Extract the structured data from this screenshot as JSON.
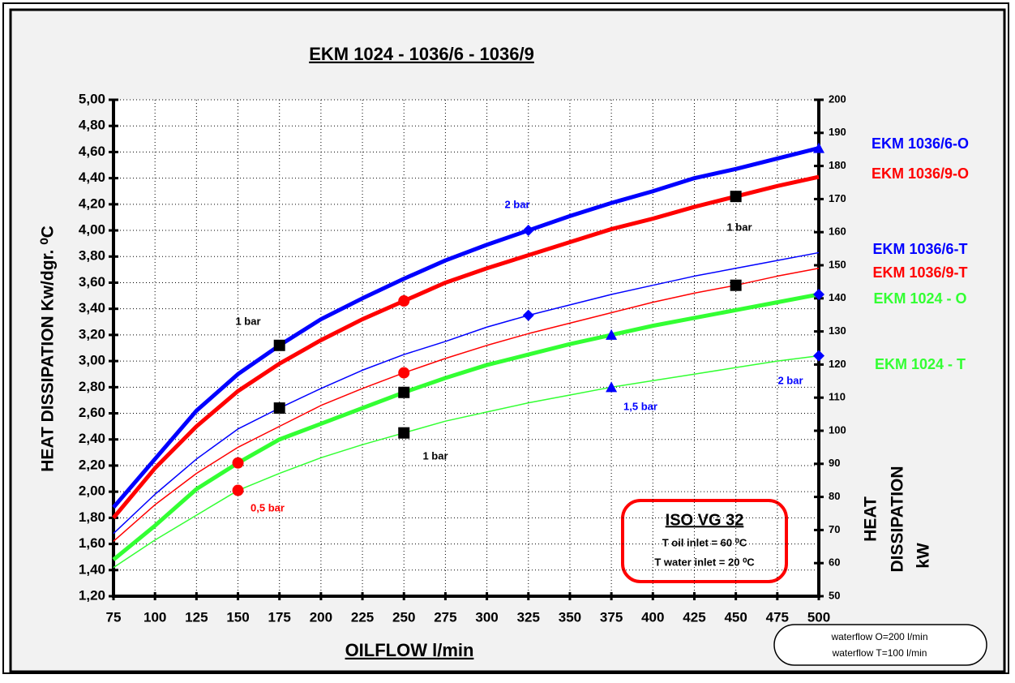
{
  "chart_data": {
    "type": "line",
    "title": "EKM 1024 - 1036/6 - 1036/9",
    "x_label": "OILFLOW l/min",
    "y_label": "HEAT DISSIPATION  Kw/dgr. ⁰C",
    "y2_label": [
      "HEAT",
      "DISSIPATION",
      "kW"
    ],
    "x": [
      75,
      100,
      125,
      150,
      175,
      200,
      225,
      250,
      275,
      300,
      325,
      350,
      375,
      400,
      425,
      450,
      475,
      500
    ],
    "xlim": [
      75,
      500
    ],
    "xticks": [
      75,
      100,
      125,
      150,
      175,
      200,
      225,
      250,
      275,
      300,
      325,
      350,
      375,
      400,
      425,
      450,
      475,
      500
    ],
    "ylim": [
      1.2,
      5.0
    ],
    "yticks": [
      {
        "value": 1.2,
        "label": "1,20"
      },
      {
        "value": 1.4,
        "label": "1,40"
      },
      {
        "value": 1.6,
        "label": "1,60"
      },
      {
        "value": 1.8,
        "label": "1,80"
      },
      {
        "value": 2.0,
        "label": "2,00"
      },
      {
        "value": 2.2,
        "label": "2,20"
      },
      {
        "value": 2.4,
        "label": "2,40"
      },
      {
        "value": 2.6,
        "label": "2,60"
      },
      {
        "value": 2.8,
        "label": "2,80"
      },
      {
        "value": 3.0,
        "label": "3,00"
      },
      {
        "value": 3.2,
        "label": "3,20"
      },
      {
        "value": 3.4,
        "label": "3,40"
      },
      {
        "value": 3.6,
        "label": "3,60"
      },
      {
        "value": 3.8,
        "label": "3,80"
      },
      {
        "value": 4.0,
        "label": "4,00"
      },
      {
        "value": 4.2,
        "label": "4,20"
      },
      {
        "value": 4.4,
        "label": "4,40"
      },
      {
        "value": 4.6,
        "label": "4,60"
      },
      {
        "value": 4.8,
        "label": "4,80"
      },
      {
        "value": 5.0,
        "label": "5,00"
      }
    ],
    "y2lim": [
      50,
      200
    ],
    "y2ticks": [
      50,
      60,
      70,
      80,
      90,
      100,
      110,
      120,
      130,
      140,
      150,
      160,
      170,
      180,
      190,
      200
    ],
    "grid": true,
    "series": [
      {
        "name": "EKM 1036/6-O",
        "color": "#0000ff",
        "width": 5,
        "values": [
          1.88,
          2.25,
          2.62,
          2.9,
          3.12,
          3.32,
          3.48,
          3.63,
          3.77,
          3.89,
          4.0,
          4.11,
          4.21,
          4.3,
          4.4,
          4.47,
          4.55,
          4.63
        ]
      },
      {
        "name": "EKM 1036/9-O",
        "color": "#ff0000",
        "width": 5,
        "values": [
          1.8,
          2.18,
          2.5,
          2.77,
          2.98,
          3.16,
          3.32,
          3.46,
          3.6,
          3.71,
          3.81,
          3.91,
          4.01,
          4.09,
          4.18,
          4.26,
          4.34,
          4.41
        ]
      },
      {
        "name": "EKM 1036/6-T",
        "color": "#0000ff",
        "width": 1.5,
        "values": [
          1.68,
          1.98,
          2.25,
          2.48,
          2.64,
          2.79,
          2.93,
          3.05,
          3.15,
          3.26,
          3.35,
          3.43,
          3.51,
          3.58,
          3.65,
          3.71,
          3.77,
          3.83
        ]
      },
      {
        "name": "EKM 1036/9-T",
        "color": "#ff0000",
        "width": 1.5,
        "values": [
          1.62,
          1.9,
          2.14,
          2.34,
          2.5,
          2.66,
          2.79,
          2.91,
          3.02,
          3.12,
          3.21,
          3.29,
          3.37,
          3.45,
          3.52,
          3.58,
          3.65,
          3.71
        ]
      },
      {
        "name": "EKM 1024 - O",
        "color": "#33ff33",
        "width": 5,
        "values": [
          1.48,
          1.74,
          2.02,
          2.22,
          2.4,
          2.52,
          2.64,
          2.76,
          2.87,
          2.97,
          3.05,
          3.13,
          3.2,
          3.27,
          3.33,
          3.39,
          3.45,
          3.51
        ]
      },
      {
        "name": "EKM 1024 - T",
        "color": "#33ff33",
        "width": 1.5,
        "values": [
          1.42,
          1.63,
          1.82,
          2.01,
          2.14,
          2.26,
          2.36,
          2.45,
          2.54,
          2.61,
          2.68,
          2.74,
          2.8,
          2.85,
          2.9,
          2.95,
          3.0,
          3.04
        ]
      }
    ],
    "markers": [
      {
        "x": 175,
        "y": 3.12,
        "shape": "square",
        "color": "#000000"
      },
      {
        "x": 175,
        "y": 2.64,
        "shape": "square",
        "color": "#000000"
      },
      {
        "x": 250,
        "y": 2.76,
        "shape": "square",
        "color": "#000000"
      },
      {
        "x": 250,
        "y": 2.45,
        "shape": "square",
        "color": "#000000"
      },
      {
        "x": 450,
        "y": 4.26,
        "shape": "square",
        "color": "#000000"
      },
      {
        "x": 450,
        "y": 3.58,
        "shape": "square",
        "color": "#000000"
      },
      {
        "x": 150,
        "y": 2.22,
        "shape": "circle",
        "color": "#ff0000"
      },
      {
        "x": 150,
        "y": 2.01,
        "shape": "circle",
        "color": "#ff0000"
      },
      {
        "x": 250,
        "y": 3.46,
        "shape": "circle",
        "color": "#ff0000"
      },
      {
        "x": 250,
        "y": 2.91,
        "shape": "circle",
        "color": "#ff0000"
      },
      {
        "x": 325,
        "y": 4.0,
        "shape": "diamond",
        "color": "#0000ff"
      },
      {
        "x": 325,
        "y": 3.35,
        "shape": "diamond",
        "color": "#0000ff"
      },
      {
        "x": 500,
        "y": 3.51,
        "shape": "diamond",
        "color": "#0000ff"
      },
      {
        "x": 500,
        "y": 3.04,
        "shape": "diamond",
        "color": "#0000ff"
      },
      {
        "x": 375,
        "y": 3.2,
        "shape": "triangle",
        "color": "#0000ff"
      },
      {
        "x": 375,
        "y": 2.8,
        "shape": "triangle",
        "color": "#0000ff"
      },
      {
        "x": 500,
        "y": 4.63,
        "shape": "triangle",
        "color": "#0000ff"
      }
    ],
    "annotations": [
      {
        "text": "2 bar",
        "color": "#0000ff"
      },
      {
        "text": "1 bar",
        "color": "#000000"
      },
      {
        "text": "1 bar",
        "color": "#000000"
      },
      {
        "text": "1 bar",
        "color": "#000000"
      },
      {
        "text": "1,5 bar",
        "color": "#0000ff"
      },
      {
        "text": "0,5 bar",
        "color": "#ff0000"
      },
      {
        "text": "2 bar",
        "color": "#0000ff"
      }
    ],
    "info_box": {
      "title": "ISO VG 32",
      "lines": [
        "T oil inlet = 60 ⁰C",
        "T water inlet = 20 ⁰C"
      ]
    },
    "waterflow": [
      "waterflow  O=200 l/min",
      "waterflow  T=100 l/min"
    ]
  }
}
